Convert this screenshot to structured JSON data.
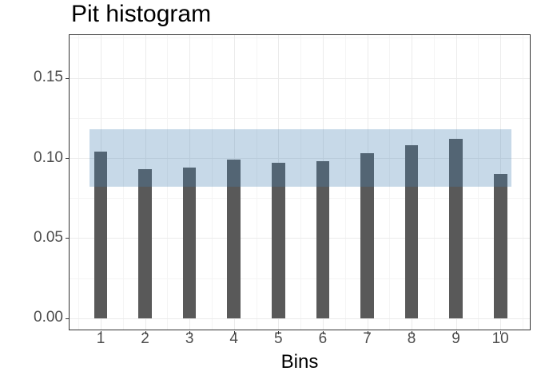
{
  "chart_data": {
    "type": "bar",
    "title": "Pit histogram",
    "xlabel": "Bins",
    "ylabel": "",
    "categories": [
      1,
      2,
      3,
      4,
      5,
      6,
      7,
      8,
      9,
      10
    ],
    "values": [
      0.104,
      0.093,
      0.094,
      0.099,
      0.097,
      0.098,
      0.103,
      0.108,
      0.112,
      0.09
    ],
    "band": {
      "ymin": 0.082,
      "ymax": 0.118,
      "xmin": 0.75,
      "xmax": 10.25
    },
    "y_major_ticks": [
      0.0,
      0.05,
      0.1,
      0.15
    ],
    "y_tick_labels": [
      "0.00",
      "0.05",
      "0.10",
      "0.15"
    ],
    "y_minor_ticks": [
      0.025,
      0.075,
      0.125,
      0.175
    ],
    "x_minor_ticks": [
      0.5,
      1.5,
      2.5,
      3.5,
      4.5,
      5.5,
      6.5,
      7.5,
      8.5,
      9.5,
      10.5
    ],
    "xlim": [
      0.28,
      10.68
    ],
    "ylim": [
      -0.0075,
      0.1771
    ],
    "bar_width_bins": 0.3,
    "grid": true,
    "legend": "none",
    "colors": {
      "bar_fill": "#595959",
      "band_fill": "#4682B4",
      "band_alpha": 0.3,
      "panel_border": "#333333",
      "grid_major": "#ebebeb",
      "grid_minor": "#f4f4f4",
      "tick_text": "#4d4d4d",
      "title_text": "#000000"
    }
  }
}
